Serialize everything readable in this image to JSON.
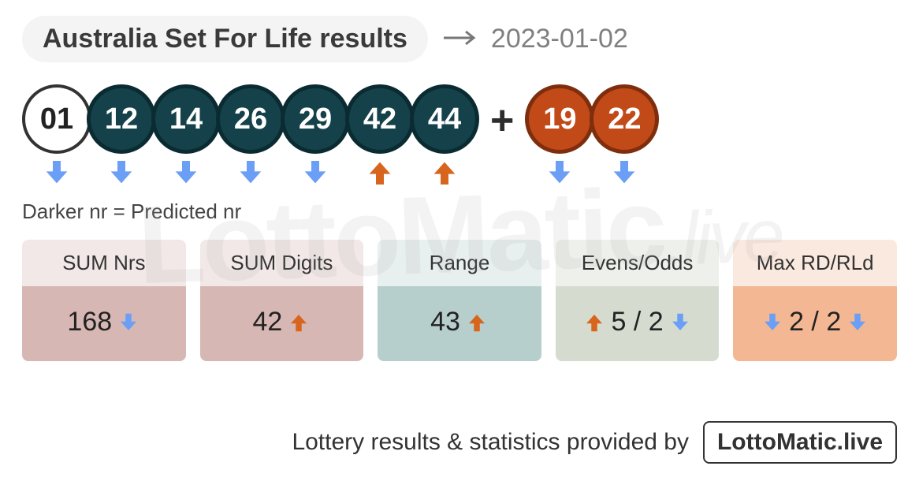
{
  "title": "Australia Set For Life results",
  "date": "2023-01-02",
  "legend": "Darker nr = Predicted nr",
  "plus": "+",
  "watermark_main": "LottoMatic",
  "watermark_suffix": ".live",
  "colors": {
    "ball_white_bg": "#ffffff",
    "ball_white_fg": "#222222",
    "ball_teal_bg": "#15424a",
    "ball_teal_fg": "#ffffff",
    "ball_orange_bg": "#c14a18",
    "ball_orange_fg": "#ffffff",
    "arrow_down": "#6b9ff5",
    "arrow_up": "#d8651e"
  },
  "main_balls": [
    {
      "num": "01",
      "style": "white",
      "trend": "down"
    },
    {
      "num": "12",
      "style": "teal",
      "trend": "down"
    },
    {
      "num": "14",
      "style": "teal",
      "trend": "down"
    },
    {
      "num": "26",
      "style": "teal",
      "trend": "down"
    },
    {
      "num": "29",
      "style": "teal",
      "trend": "down"
    },
    {
      "num": "42",
      "style": "teal",
      "trend": "up"
    },
    {
      "num": "44",
      "style": "teal",
      "trend": "up"
    }
  ],
  "supp_balls": [
    {
      "num": "19",
      "style": "orange",
      "trend": "down"
    },
    {
      "num": "22",
      "style": "orange",
      "trend": "down"
    }
  ],
  "stats": [
    {
      "label": "SUM Nrs",
      "head_bg": "#f1e8e7",
      "body_bg": "#d7b7b3",
      "parts": [
        {
          "t": "168"
        },
        {
          "arrow": "down"
        }
      ]
    },
    {
      "label": "SUM Digits",
      "head_bg": "#f1e8e7",
      "body_bg": "#d7b7b3",
      "parts": [
        {
          "t": "42"
        },
        {
          "arrow": "up"
        }
      ]
    },
    {
      "label": "Range",
      "head_bg": "#e8efef",
      "body_bg": "#b7cfcc",
      "parts": [
        {
          "t": "43"
        },
        {
          "arrow": "up"
        }
      ]
    },
    {
      "label": "Evens/Odds",
      "head_bg": "#edf0eb",
      "body_bg": "#d5dccf",
      "parts": [
        {
          "arrow": "up"
        },
        {
          "t": "5 / 2"
        },
        {
          "arrow": "down"
        }
      ]
    },
    {
      "label": "Max RD/RLd",
      "head_bg": "#fae9df",
      "body_bg": "#f3b794",
      "parts": [
        {
          "arrow": "down"
        },
        {
          "t": "2 / 2"
        },
        {
          "arrow": "down"
        }
      ]
    }
  ],
  "footer_text": "Lottery results & statistics provided by",
  "footer_brand": "LottoMatic.live"
}
